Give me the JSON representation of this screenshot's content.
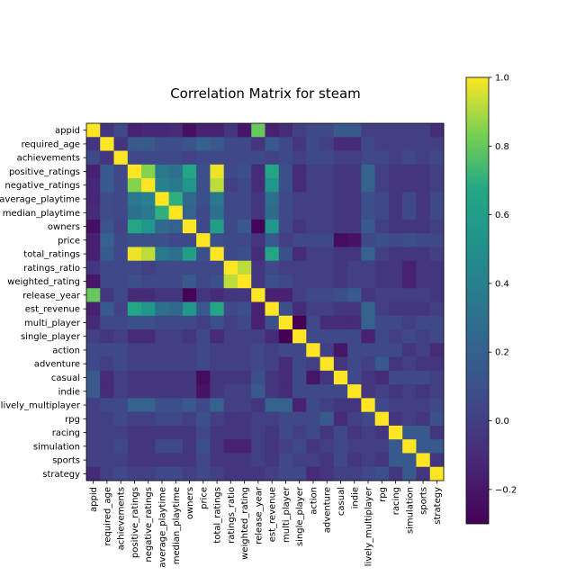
{
  "chart_data": {
    "type": "heatmap",
    "title": "Correlation Matrix for steam",
    "xlabel": "",
    "ylabel": "",
    "labels": [
      "appid",
      "required_age",
      "achievements",
      "positive_ratings",
      "negative_ratings",
      "average_playtime",
      "median_playtime",
      "owners",
      "price",
      "total_ratings",
      "ratings_ratio",
      "weighted_rating",
      "release_year",
      "est_revenue",
      "multi_player",
      "single_player",
      "action",
      "adventure",
      "casual",
      "indie",
      "lively_multiplayer",
      "rpg",
      "racing",
      "simulation",
      "sports",
      "strategy"
    ],
    "colormap": "viridis",
    "vmin": -0.3,
    "vmax": 1.0,
    "colorbar_ticks": [
      {
        "value": 1.0,
        "label": "1.0"
      },
      {
        "value": 0.8,
        "label": "0.8"
      },
      {
        "value": 0.6,
        "label": "0.6"
      },
      {
        "value": 0.4,
        "label": "0.4"
      },
      {
        "value": 0.2,
        "label": "0.2"
      },
      {
        "value": 0.0,
        "label": "0.0"
      },
      {
        "value": -0.2,
        "label": "−0.2"
      }
    ],
    "matrix": [
      [
        1.0,
        -0.05,
        0.05,
        -0.15,
        -0.12,
        -0.12,
        -0.1,
        -0.23,
        -0.15,
        -0.15,
        -0.05,
        -0.2,
        0.8,
        -0.15,
        -0.1,
        0.0,
        0.05,
        0.05,
        0.15,
        0.15,
        0.0,
        0.0,
        0.0,
        0.0,
        0.0,
        -0.1
      ],
      [
        -0.05,
        1.0,
        -0.05,
        0.15,
        0.15,
        0.08,
        0.08,
        0.12,
        0.2,
        0.15,
        0.05,
        0.05,
        -0.05,
        0.15,
        0.05,
        -0.05,
        0.05,
        0.0,
        -0.1,
        -0.1,
        0.05,
        0.0,
        0.0,
        0.0,
        0.0,
        0.0
      ],
      [
        0.05,
        -0.05,
        1.0,
        0.05,
        0.05,
        0.05,
        0.05,
        0.02,
        0.05,
        0.05,
        0.05,
        0.05,
        0.05,
        0.02,
        0.05,
        0.0,
        0.05,
        0.05,
        0.0,
        0.0,
        0.05,
        0.05,
        0.0,
        0.05,
        0.0,
        0.05
      ],
      [
        -0.15,
        0.15,
        0.05,
        1.0,
        0.85,
        0.35,
        0.3,
        0.65,
        0.1,
        0.98,
        0.05,
        0.1,
        -0.1,
        0.65,
        0.1,
        -0.1,
        0.0,
        0.0,
        -0.05,
        -0.05,
        0.2,
        0.0,
        -0.05,
        -0.05,
        -0.05,
        0.0
      ],
      [
        -0.12,
        0.15,
        0.05,
        0.85,
        1.0,
        0.4,
        0.35,
        0.55,
        0.1,
        0.92,
        0.0,
        0.05,
        -0.1,
        0.55,
        0.1,
        -0.1,
        0.0,
        0.0,
        -0.05,
        -0.05,
        0.2,
        0.0,
        -0.05,
        -0.05,
        -0.05,
        0.0
      ],
      [
        -0.12,
        0.08,
        0.05,
        0.35,
        0.4,
        1.0,
        0.7,
        0.25,
        0.1,
        0.35,
        0.05,
        0.05,
        -0.05,
        0.3,
        0.05,
        0.0,
        0.0,
        0.0,
        -0.05,
        -0.05,
        0.1,
        0.05,
        -0.05,
        0.05,
        -0.05,
        0.05
      ],
      [
        -0.1,
        0.08,
        0.05,
        0.3,
        0.35,
        0.7,
        1.0,
        0.2,
        0.05,
        0.3,
        0.05,
        0.05,
        -0.05,
        0.25,
        0.05,
        0.0,
        0.0,
        0.0,
        -0.05,
        -0.05,
        0.1,
        0.05,
        -0.05,
        0.05,
        -0.05,
        0.05
      ],
      [
        -0.23,
        0.12,
        0.02,
        0.65,
        0.55,
        0.25,
        0.2,
        1.0,
        0.05,
        0.6,
        0.05,
        0.15,
        -0.28,
        0.55,
        0.05,
        -0.05,
        0.0,
        0.0,
        -0.05,
        -0.05,
        0.15,
        0.0,
        -0.05,
        -0.05,
        -0.05,
        0.0
      ],
      [
        -0.15,
        0.2,
        0.05,
        0.1,
        0.1,
        0.1,
        0.05,
        0.05,
        1.0,
        0.1,
        0.05,
        0.05,
        -0.05,
        0.15,
        0.0,
        0.05,
        0.05,
        0.05,
        -0.25,
        -0.22,
        0.05,
        0.1,
        0.05,
        0.1,
        0.05,
        0.05
      ],
      [
        -0.15,
        0.15,
        0.05,
        0.98,
        0.92,
        0.35,
        0.3,
        0.6,
        0.1,
        1.0,
        0.05,
        0.1,
        -0.1,
        0.65,
        0.1,
        -0.1,
        0.0,
        0.0,
        -0.05,
        -0.05,
        0.2,
        0.0,
        -0.05,
        -0.05,
        -0.05,
        0.0
      ],
      [
        -0.05,
        0.05,
        0.05,
        0.05,
        0.0,
        0.05,
        0.05,
        0.05,
        0.05,
        0.05,
        1.0,
        0.92,
        -0.05,
        0.05,
        0.0,
        0.0,
        0.0,
        0.0,
        -0.05,
        0.0,
        0.0,
        -0.05,
        -0.05,
        -0.15,
        -0.05,
        -0.05
      ],
      [
        -0.2,
        0.05,
        0.05,
        0.1,
        0.05,
        0.05,
        0.05,
        0.15,
        0.05,
        0.1,
        0.92,
        1.0,
        -0.05,
        0.1,
        0.05,
        0.0,
        0.0,
        0.0,
        -0.05,
        0.0,
        0.0,
        -0.05,
        -0.05,
        -0.15,
        -0.05,
        -0.05
      ],
      [
        0.8,
        -0.05,
        0.05,
        -0.1,
        -0.1,
        -0.05,
        -0.05,
        -0.28,
        -0.05,
        -0.1,
        -0.05,
        -0.05,
        1.0,
        -0.15,
        -0.15,
        0.0,
        0.05,
        0.05,
        0.1,
        0.15,
        -0.05,
        0.0,
        0.0,
        0.0,
        0.0,
        -0.05
      ],
      [
        -0.15,
        0.15,
        0.02,
        0.65,
        0.55,
        0.3,
        0.25,
        0.55,
        0.15,
        0.65,
        0.05,
        0.1,
        -0.15,
        1.0,
        0.1,
        -0.1,
        0.0,
        0.0,
        -0.05,
        -0.05,
        0.2,
        0.0,
        -0.05,
        -0.05,
        -0.05,
        0.0
      ],
      [
        -0.1,
        0.05,
        0.05,
        0.1,
        0.1,
        0.05,
        0.05,
        0.05,
        0.0,
        0.1,
        0.0,
        0.05,
        -0.15,
        0.1,
        1.0,
        -0.3,
        0.05,
        -0.1,
        -0.1,
        -0.1,
        0.2,
        0.05,
        0.05,
        0.0,
        0.05,
        0.05
      ],
      [
        0.0,
        -0.05,
        0.0,
        -0.1,
        -0.1,
        0.0,
        0.0,
        -0.05,
        0.05,
        -0.1,
        0.0,
        0.0,
        0.0,
        -0.1,
        -0.3,
        1.0,
        0.05,
        0.05,
        0.05,
        0.05,
        -0.15,
        0.05,
        0.0,
        0.05,
        0.0,
        0.05
      ],
      [
        0.05,
        0.05,
        0.05,
        0.0,
        0.0,
        0.0,
        0.0,
        0.0,
        0.05,
        0.0,
        0.0,
        0.0,
        0.05,
        0.0,
        0.05,
        0.05,
        1.0,
        0.0,
        -0.2,
        0.05,
        0.05,
        0.05,
        0.05,
        -0.05,
        0.0,
        -0.1
      ],
      [
        0.05,
        0.0,
        0.05,
        0.0,
        0.0,
        0.0,
        0.0,
        0.0,
        0.05,
        0.0,
        0.0,
        0.0,
        0.05,
        0.0,
        -0.1,
        0.05,
        0.0,
        1.0,
        -0.05,
        0.05,
        0.0,
        0.15,
        -0.05,
        0.0,
        -0.05,
        -0.05
      ],
      [
        0.15,
        -0.1,
        0.0,
        -0.05,
        -0.05,
        -0.05,
        -0.05,
        -0.05,
        -0.25,
        -0.05,
        -0.05,
        -0.05,
        0.1,
        -0.05,
        -0.1,
        0.05,
        -0.2,
        -0.05,
        1.0,
        0.05,
        -0.05,
        -0.1,
        0.05,
        0.05,
        0.05,
        0.0
      ],
      [
        0.15,
        -0.1,
        0.0,
        -0.05,
        -0.05,
        -0.05,
        -0.05,
        -0.05,
        -0.22,
        -0.05,
        0.0,
        0.0,
        0.15,
        -0.05,
        -0.1,
        0.05,
        0.05,
        0.05,
        0.05,
        1.0,
        -0.05,
        0.0,
        -0.05,
        0.0,
        -0.05,
        0.0
      ],
      [
        0.0,
        0.05,
        0.05,
        0.2,
        0.2,
        0.1,
        0.1,
        0.15,
        0.05,
        0.2,
        0.0,
        0.0,
        -0.05,
        0.2,
        0.2,
        -0.15,
        0.05,
        0.0,
        -0.05,
        -0.05,
        1.0,
        0.05,
        0.0,
        0.0,
        0.0,
        0.05
      ],
      [
        0.0,
        0.0,
        0.05,
        0.0,
        0.0,
        0.05,
        0.05,
        0.0,
        0.1,
        0.0,
        -0.05,
        -0.05,
        0.0,
        0.0,
        0.05,
        0.05,
        0.05,
        0.15,
        -0.1,
        0.0,
        0.05,
        1.0,
        -0.05,
        0.0,
        -0.05,
        0.1
      ],
      [
        0.0,
        0.0,
        0.0,
        -0.05,
        -0.05,
        -0.05,
        -0.05,
        -0.05,
        0.05,
        -0.05,
        -0.05,
        -0.05,
        0.0,
        -0.05,
        0.05,
        0.0,
        0.05,
        -0.05,
        0.05,
        -0.05,
        0.0,
        -0.05,
        1.0,
        0.15,
        0.15,
        -0.05
      ],
      [
        0.0,
        0.0,
        0.05,
        -0.05,
        -0.05,
        0.05,
        0.05,
        -0.05,
        0.1,
        -0.05,
        -0.15,
        -0.15,
        0.0,
        -0.05,
        0.0,
        0.05,
        -0.05,
        0.0,
        0.05,
        0.0,
        0.0,
        0.0,
        0.15,
        1.0,
        0.15,
        0.15
      ],
      [
        0.0,
        0.0,
        0.0,
        -0.05,
        -0.05,
        -0.05,
        -0.05,
        -0.05,
        0.05,
        -0.05,
        -0.05,
        -0.05,
        0.0,
        -0.05,
        0.05,
        0.0,
        0.0,
        -0.05,
        0.05,
        -0.05,
        0.0,
        -0.05,
        0.15,
        0.15,
        1.0,
        -0.05
      ],
      [
        -0.1,
        0.0,
        0.05,
        0.0,
        0.0,
        0.05,
        0.05,
        0.0,
        0.05,
        0.0,
        -0.05,
        -0.05,
        -0.05,
        0.0,
        0.05,
        0.05,
        -0.1,
        -0.05,
        0.0,
        0.0,
        0.05,
        0.1,
        -0.05,
        0.15,
        -0.05,
        1.0
      ]
    ]
  }
}
